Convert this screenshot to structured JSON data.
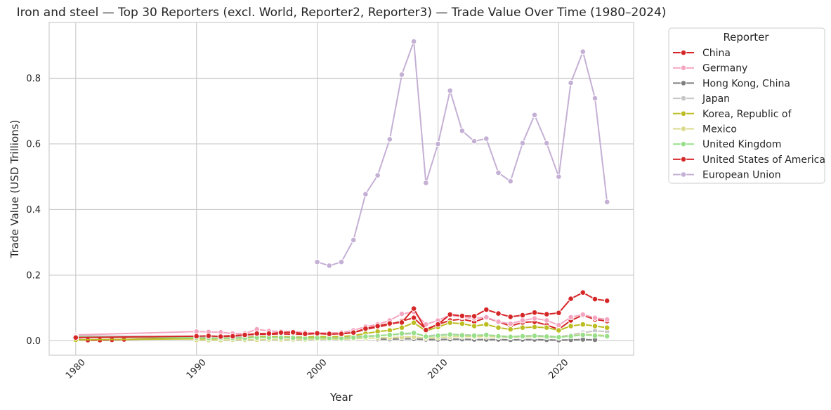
{
  "chart_data": {
    "type": "line",
    "title": "Iron and steel — Top 30 Reporters (excl. World, Reporter2, Reporter3) — Trade Value Over Time (1980–2024)",
    "xlabel": "Year",
    "ylabel": "Trade Value (USD Trillions)",
    "xlim": [
      1977.8,
      2026.2
    ],
    "ylim": [
      -0.044,
      0.97
    ],
    "x_ticks": [
      "1980",
      "1990",
      "2000",
      "2010",
      "2020"
    ],
    "y_ticks": [
      "0.0",
      "0.2",
      "0.4",
      "0.6",
      "0.8"
    ],
    "grid": true,
    "legend": {
      "title": "Reporter",
      "placement": "outside-right"
    },
    "series": [
      {
        "name": "China",
        "color": "#d62728",
        "x": [
          1980,
          1981,
          1982,
          1983,
          1984,
          1990,
          1991,
          1992,
          1993,
          1994,
          1995,
          1996,
          1997,
          1998,
          1999,
          2000,
          2001,
          2002,
          2003,
          2004,
          2005,
          2006,
          2007,
          2008,
          2009,
          2010,
          2011,
          2012,
          2013,
          2014,
          2015,
          2016,
          2017,
          2018,
          2019,
          2020,
          2021,
          2022,
          2023,
          2024
        ],
        "y": [
          0.005,
          0.002,
          0.002,
          0.003,
          0.004,
          0.01,
          0.012,
          0.014,
          0.016,
          0.018,
          0.02,
          0.02,
          0.021,
          0.02,
          0.02,
          0.022,
          0.02,
          0.022,
          0.025,
          0.035,
          0.042,
          0.05,
          0.06,
          0.07,
          0.035,
          0.05,
          0.062,
          0.066,
          0.058,
          0.07,
          0.058,
          0.045,
          0.056,
          0.058,
          0.048,
          0.035,
          0.062,
          0.078,
          0.065,
          0.06
        ]
      },
      {
        "name": "Germany",
        "color": "#f4a6c1",
        "x": [
          1980,
          1990,
          1991,
          1992,
          1993,
          1994,
          1995,
          1996,
          1997,
          1998,
          1999,
          2000,
          2001,
          2002,
          2003,
          2004,
          2005,
          2006,
          2007,
          2008,
          2009,
          2010,
          2011,
          2012,
          2013,
          2014,
          2015,
          2016,
          2017,
          2018,
          2019,
          2020,
          2021,
          2022,
          2023,
          2024
        ],
        "y": [
          0.018,
          0.028,
          0.027,
          0.026,
          0.022,
          0.022,
          0.035,
          0.03,
          0.028,
          0.028,
          0.025,
          0.024,
          0.024,
          0.025,
          0.032,
          0.043,
          0.05,
          0.062,
          0.082,
          0.088,
          0.05,
          0.062,
          0.078,
          0.072,
          0.068,
          0.072,
          0.058,
          0.052,
          0.062,
          0.068,
          0.062,
          0.048,
          0.072,
          0.08,
          0.07,
          0.065
        ]
      },
      {
        "name": "Hong Kong, China",
        "color": "#7f7f7f",
        "x": [
          2005,
          2006,
          2007,
          2008,
          2009,
          2010,
          2011,
          2012,
          2013,
          2014,
          2015,
          2016,
          2017,
          2018,
          2019,
          2020,
          2021,
          2022,
          2023
        ],
        "y": [
          0.005,
          0.005,
          0.006,
          0.006,
          0.004,
          0.004,
          0.005,
          0.005,
          0.004,
          0.004,
          0.004,
          0.003,
          0.004,
          0.004,
          0.003,
          0.002,
          0.003,
          0.004,
          0.003
        ]
      },
      {
        "name": "Japan",
        "color": "#c7c7c7",
        "x": [
          1980,
          1990,
          1991,
          1992,
          1993,
          1994,
          1995,
          1996,
          1997,
          1998,
          1999,
          2000,
          2001,
          2002,
          2003,
          2004,
          2005,
          2006,
          2007,
          2008,
          2009,
          2010,
          2011,
          2012,
          2013,
          2014,
          2015,
          2016,
          2017,
          2018,
          2019,
          2020,
          2021,
          2022,
          2023,
          2024
        ],
        "y": [
          0.015,
          0.013,
          0.013,
          0.013,
          0.012,
          0.012,
          0.014,
          0.013,
          0.013,
          0.012,
          0.011,
          0.012,
          0.011,
          0.012,
          0.013,
          0.015,
          0.016,
          0.018,
          0.02,
          0.022,
          0.015,
          0.018,
          0.02,
          0.019,
          0.017,
          0.018,
          0.015,
          0.013,
          0.015,
          0.016,
          0.015,
          0.012,
          0.018,
          0.025,
          0.03,
          0.028
        ]
      },
      {
        "name": "Korea, Republic of",
        "color": "#bcbd22",
        "x": [
          1980,
          1990,
          1991,
          1992,
          1993,
          1994,
          1995,
          1996,
          1997,
          1998,
          1999,
          2000,
          2001,
          2002,
          2003,
          2004,
          2005,
          2006,
          2007,
          2008,
          2009,
          2010,
          2011,
          2012,
          2013,
          2014,
          2015,
          2016,
          2017,
          2018,
          2019,
          2020,
          2021,
          2022,
          2023,
          2024
        ],
        "y": [
          0.003,
          0.006,
          0.006,
          0.007,
          0.008,
          0.009,
          0.012,
          0.012,
          0.012,
          0.01,
          0.011,
          0.013,
          0.012,
          0.013,
          0.016,
          0.022,
          0.028,
          0.032,
          0.04,
          0.055,
          0.03,
          0.042,
          0.055,
          0.052,
          0.045,
          0.05,
          0.04,
          0.035,
          0.04,
          0.042,
          0.04,
          0.032,
          0.045,
          0.05,
          0.045,
          0.04
        ]
      },
      {
        "name": "Mexico",
        "color": "#dbdb8d",
        "x": [
          1990,
          1991,
          1992,
          1993,
          1994,
          1995,
          1996,
          1997,
          1998,
          1999,
          2000,
          2001,
          2002,
          2003,
          2004,
          2005,
          2006,
          2007,
          2008,
          2009,
          2010,
          2011,
          2012,
          2013,
          2014,
          2015,
          2016,
          2017,
          2018,
          2019,
          2020,
          2021,
          2022,
          2023,
          2024
        ],
        "y": [
          0.002,
          0.002,
          0.002,
          0.003,
          0.003,
          0.003,
          0.004,
          0.004,
          0.004,
          0.004,
          0.005,
          0.005,
          0.005,
          0.006,
          0.008,
          0.009,
          0.01,
          0.011,
          0.012,
          0.008,
          0.01,
          0.012,
          0.013,
          0.012,
          0.013,
          0.012,
          0.011,
          0.012,
          0.013,
          0.012,
          0.01,
          0.015,
          0.02,
          0.018,
          0.016
        ]
      },
      {
        "name": "United Kingdom",
        "color": "#98df8a",
        "x": [
          1980,
          1990,
          1991,
          1992,
          1993,
          1994,
          1995,
          1996,
          1997,
          1998,
          1999,
          2000,
          2001,
          2002,
          2003,
          2004,
          2005,
          2006,
          2007,
          2008,
          2009,
          2010,
          2011,
          2012,
          2013,
          2014,
          2015,
          2016,
          2017,
          2018,
          2019,
          2020,
          2021,
          2022,
          2023,
          2024
        ],
        "y": [
          0.012,
          0.009,
          0.008,
          0.008,
          0.008,
          0.008,
          0.01,
          0.01,
          0.01,
          0.009,
          0.008,
          0.009,
          0.008,
          0.008,
          0.01,
          0.013,
          0.015,
          0.018,
          0.022,
          0.024,
          0.013,
          0.016,
          0.019,
          0.017,
          0.016,
          0.018,
          0.014,
          0.012,
          0.014,
          0.015,
          0.013,
          0.011,
          0.014,
          0.018,
          0.016,
          0.014
        ]
      },
      {
        "name": "United States of America",
        "color": "#d62728",
        "x": [
          1980,
          1990,
          1991,
          1992,
          1993,
          1994,
          1995,
          1996,
          1997,
          1998,
          1999,
          2000,
          2001,
          2002,
          2003,
          2004,
          2005,
          2006,
          2007,
          2008,
          2009,
          2010,
          2011,
          2012,
          2013,
          2014,
          2015,
          2016,
          2017,
          2018,
          2019,
          2020,
          2021,
          2022,
          2023,
          2024
        ],
        "y": [
          0.01,
          0.014,
          0.015,
          0.013,
          0.014,
          0.018,
          0.022,
          0.022,
          0.025,
          0.026,
          0.021,
          0.023,
          0.021,
          0.021,
          0.025,
          0.037,
          0.045,
          0.053,
          0.056,
          0.098,
          0.033,
          0.05,
          0.08,
          0.076,
          0.075,
          0.095,
          0.083,
          0.073,
          0.078,
          0.086,
          0.081,
          0.085,
          0.128,
          0.147,
          0.127,
          0.122
        ]
      },
      {
        "name": "European Union",
        "color": "#c5b0d5",
        "x": [
          2000,
          2001,
          2002,
          2003,
          2004,
          2005,
          2006,
          2007,
          2008,
          2009,
          2010,
          2011,
          2012,
          2013,
          2014,
          2015,
          2016,
          2017,
          2018,
          2019,
          2020,
          2021,
          2022,
          2023,
          2024
        ],
        "y": [
          0.24,
          0.229,
          0.24,
          0.307,
          0.447,
          0.504,
          0.614,
          0.811,
          0.912,
          0.481,
          0.6,
          0.762,
          0.64,
          0.608,
          0.616,
          0.512,
          0.486,
          0.602,
          0.688,
          0.602,
          0.5,
          0.786,
          0.881,
          0.739,
          0.423
        ]
      }
    ]
  }
}
